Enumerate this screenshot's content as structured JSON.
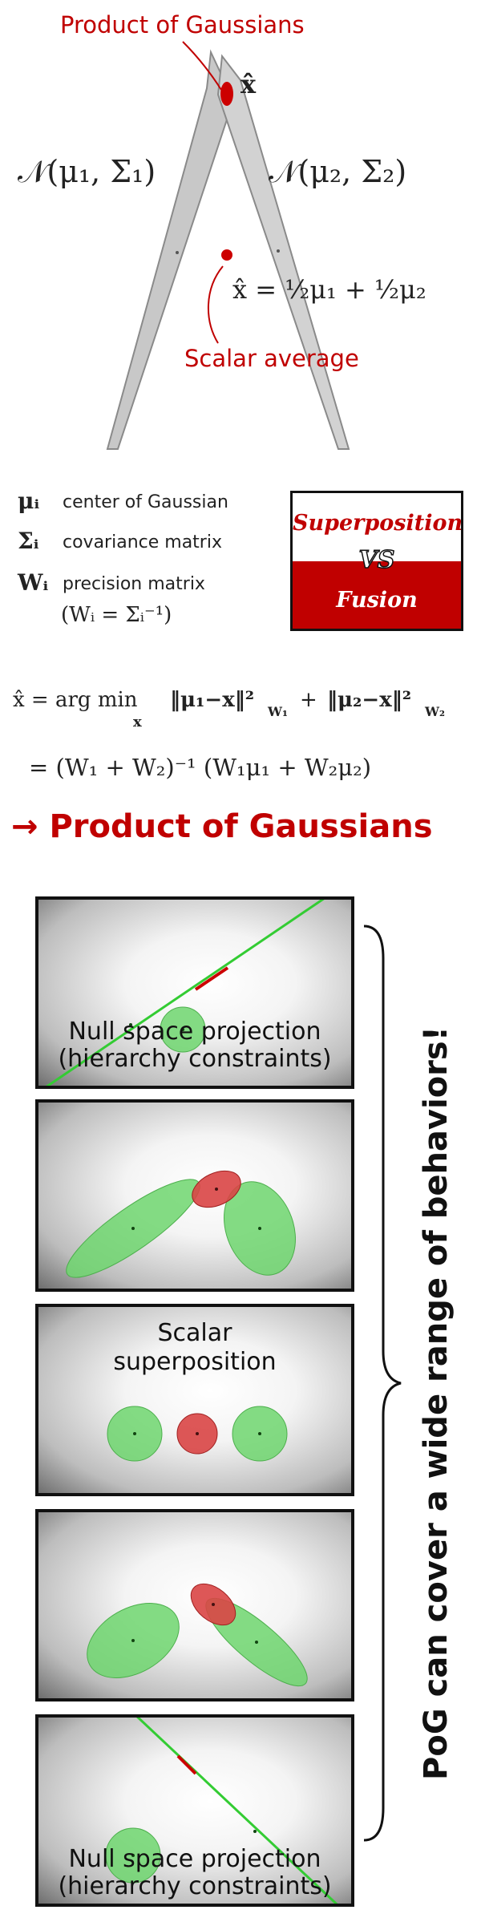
{
  "top_diagram": {
    "pog_label": "Product of Gaussians",
    "x_hat_label": "x̂",
    "n1_label": "𝒩(μ₁, Σ₁)",
    "n2_label": "𝒩(μ₂, Σ₂)",
    "scalar_avg_formula": "x̂ = ½μ₁ + ½μ₂",
    "scalar_avg_label": "Scalar average"
  },
  "legend": {
    "items": [
      {
        "symbol": "μᵢ",
        "text": "center of Gaussian"
      },
      {
        "symbol": "Σᵢ",
        "text": "covariance matrix"
      },
      {
        "symbol": "Wᵢ",
        "text": "precision matrix"
      }
    ],
    "precision_def": "(Wᵢ = Σᵢ⁻¹)"
  },
  "badge": {
    "top": "Superposition",
    "middle": "VS",
    "bottom": "Fusion"
  },
  "equations": {
    "line1": "x̂ = arg min  ‖μ₁ − x‖²_W₁  +  ‖μ₂ − x‖²_W₂",
    "line1_lhs": "x̂ = arg min",
    "line1_sub": "x",
    "line1_rhs": "‖μ₁−x‖²",
    "line1_rhs_sub": "W₁",
    "line1_plus": "+",
    "line1_rhs2": "‖μ₂−x‖²",
    "line1_rhs2_sub": "W₂",
    "line2": "= (W₁ + W₂)⁻¹ (W₁μ₁ + W₂μ₂)"
  },
  "heading": "→ Product of Gaussians",
  "panels": [
    {
      "label_line1": "Null space projection",
      "label_line2": "(hierarchy constraints)"
    },
    {
      "label_line1": "",
      "label_line2": ""
    },
    {
      "label_line1": "Scalar",
      "label_line2": "superposition"
    },
    {
      "label_line1": "",
      "label_line2": ""
    },
    {
      "label_line1": "Null space projection",
      "label_line2": "(hierarchy constraints)"
    }
  ],
  "side_caption": "PoG can cover a wide range of behaviors!",
  "colors": {
    "accent_red": "#c00000",
    "gaussian_green": "#6fd66f",
    "gaussian_red": "#d94545",
    "line_green": "#33cc33"
  }
}
